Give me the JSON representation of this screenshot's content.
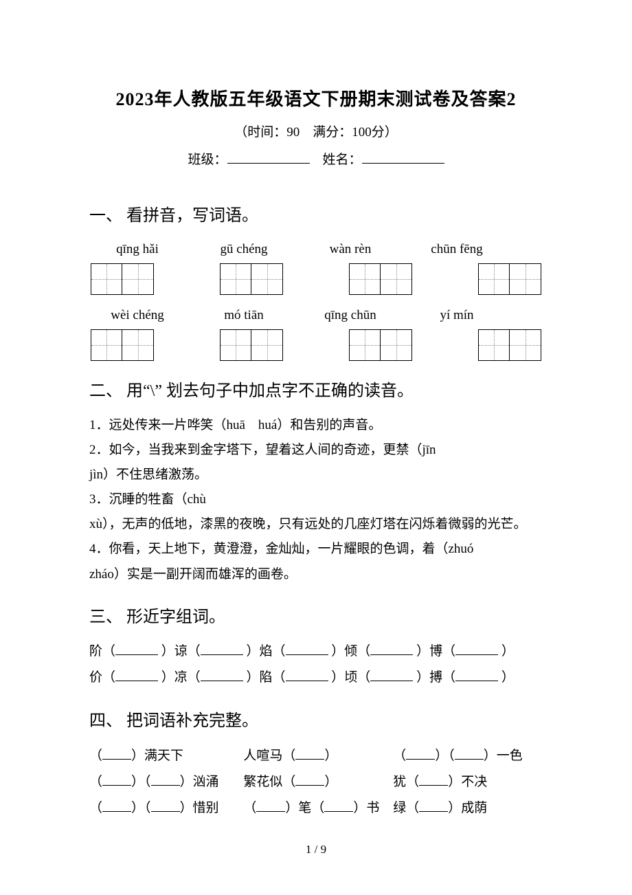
{
  "title": "2023年人教版五年级语文下册期末测试卷及答案2",
  "subtitle": "（时间：90　满分：100分）",
  "meta": {
    "class_label": "班级：",
    "name_label": "姓名："
  },
  "sections": {
    "s1": {
      "heading": "一、 看拼音，写词语。",
      "row1": [
        "qīng hǎi",
        "gū chéng",
        "wàn rèn",
        "chūn fēng"
      ],
      "row2": [
        "wèi chéng",
        "mó tiān",
        "qīng chūn",
        "yí mín"
      ]
    },
    "s2": {
      "heading": "二、 用“\\” 划去句子中加点字不正确的读音。",
      "items": [
        "1．远处传来一片哗笑（huā　huá）和告别的声音。",
        "2．如今，当我来到金字塔下，望着这人间的奇迹，更禁（jīn",
        "jìn）不住思绪激荡。",
        "3．沉睡的牲畜（chù",
        "xù），无声的低地，漆黑的夜晚，只有远处的几座灯塔在闪烁着微弱的光芒。",
        "4．你看，天上地下，黄澄澄，金灿灿，一片耀眼的色调，着（zhuó",
        "zháo）实是一副开阔而雄浑的画卷。"
      ]
    },
    "s3": {
      "heading": "三、 形近字组词。",
      "lines": [
        [
          "阶（",
          "）谅（",
          "）焰（",
          "）倾（",
          "）博（",
          "）"
        ],
        [
          "价（",
          "）凉（",
          "）陷（",
          "）顷（",
          "）搏（",
          "）"
        ]
      ]
    },
    "s4": {
      "heading": "四、 把词语补充完整。",
      "rows": [
        {
          "c1": [
            "（",
            "）满天下"
          ],
          "c2": [
            "人喧马（",
            "）"
          ],
          "c3": [
            "（",
            "）（",
            "）一色"
          ]
        },
        {
          "c1": [
            "（",
            "）（",
            "）汹涌"
          ],
          "c2": [
            "繁花似（",
            "）"
          ],
          "c3": [
            "犹（",
            "）不决"
          ]
        },
        {
          "c1": [
            "（",
            "）（",
            "）惜别"
          ],
          "c2": [
            "（",
            "）笔（",
            "）书"
          ],
          "c3": [
            "绿（",
            "）成荫"
          ]
        }
      ]
    }
  },
  "footer": {
    "page": "1",
    "sep": " / ",
    "total": "9"
  }
}
